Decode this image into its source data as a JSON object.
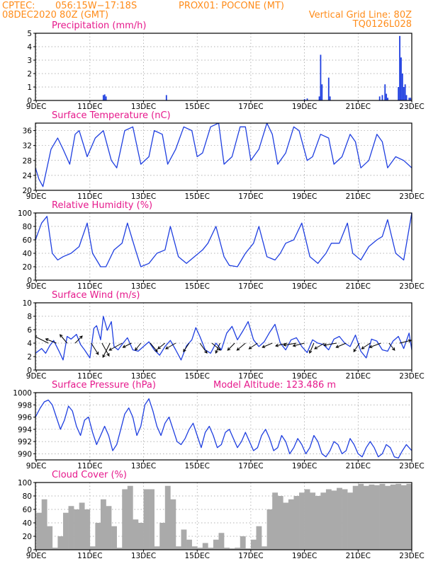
{
  "header": {
    "line1_left": "CPTEC:",
    "coords": "056:15W−17:18S",
    "station": "PROX01: POCONE (MT)",
    "run": "08DEC2020 80Z (GMT)",
    "grid_note": "Vertical Grid Line: 80Z",
    "model_code": "TQ0126L028"
  },
  "x_axis": {
    "ticks": [
      "9DEC",
      "11DEC",
      "13DEC",
      "15DEC",
      "17DEC",
      "19DEC",
      "21DEC",
      "23DEC"
    ]
  },
  "colors": {
    "title": "#e6198c",
    "header": "#ff8c1a",
    "line": "#1f3fe0",
    "cloud": "#aaaaaa",
    "arrow": "#000000"
  },
  "chart_data": [
    {
      "id": "precip",
      "type": "bar",
      "title": "Precipitation (mm/h)",
      "ylim": [
        0,
        5
      ],
      "yticks": [
        0,
        1,
        2,
        3,
        4,
        5
      ],
      "grid": true,
      "bars": [
        [
          10.5,
          0.4
        ],
        [
          10.55,
          0.45
        ],
        [
          10.6,
          0.3
        ],
        [
          12.85,
          0.4
        ],
        [
          18.0,
          0.1
        ],
        [
          18.1,
          0.15
        ],
        [
          18.55,
          0.3
        ],
        [
          18.6,
          3.4
        ],
        [
          18.65,
          1.2
        ],
        [
          18.9,
          1.7
        ],
        [
          18.95,
          0.3
        ],
        [
          20.8,
          0.3
        ],
        [
          20.9,
          0.4
        ],
        [
          21.0,
          1.2
        ],
        [
          21.05,
          0.5
        ],
        [
          21.1,
          0.2
        ],
        [
          21.5,
          1.0
        ],
        [
          21.55,
          4.8
        ],
        [
          21.6,
          3.2
        ],
        [
          21.65,
          2.0
        ],
        [
          21.7,
          1.0
        ],
        [
          21.75,
          1.2
        ],
        [
          21.8,
          0.4
        ],
        [
          21.9,
          0.2
        ],
        [
          21.95,
          0.2
        ]
      ]
    },
    {
      "id": "temp",
      "type": "line",
      "title": "Surface Temperature (nC)",
      "ylim": [
        20,
        38
      ],
      "yticks": [
        20,
        24,
        28,
        32,
        36
      ],
      "grid": true,
      "x": [
        7.97,
        8.1,
        8.25,
        8.55,
        8.8,
        9.0,
        9.25,
        9.45,
        9.6,
        9.9,
        10.2,
        10.5,
        10.8,
        11.0,
        11.3,
        11.6,
        11.9,
        12.2,
        12.4,
        12.7,
        12.9,
        13.2,
        13.5,
        13.8,
        14.0,
        14.2,
        14.5,
        14.8,
        15.0,
        15.3,
        15.6,
        15.8,
        16.0,
        16.3,
        16.6,
        16.8,
        17.0,
        17.3,
        17.6,
        17.8,
        18.1,
        18.3,
        18.6,
        18.9,
        19.1,
        19.4,
        19.7,
        19.9,
        20.1,
        20.4,
        20.7,
        20.9,
        21.1,
        21.4,
        21.7,
        22.0
      ],
      "y": [
        26,
        23,
        21,
        31,
        34,
        31,
        27,
        35,
        36,
        29,
        34,
        36,
        28,
        26,
        36,
        37,
        27,
        29,
        36,
        35,
        27,
        31,
        37,
        36,
        29,
        30,
        37,
        38,
        27,
        29,
        37,
        37,
        28,
        31,
        38,
        35,
        27,
        30,
        37,
        36,
        28,
        29,
        35,
        34,
        27,
        29,
        35,
        33,
        26,
        28,
        35,
        33,
        26,
        29,
        28,
        26
      ]
    },
    {
      "id": "rh",
      "type": "line",
      "title": "Relative Humidity (%)",
      "ylim": [
        0,
        100
      ],
      "yticks": [
        0,
        20,
        40,
        60,
        80,
        100
      ],
      "grid": true,
      "x": [
        7.97,
        8.2,
        8.4,
        8.6,
        8.8,
        9.0,
        9.3,
        9.6,
        9.9,
        10.1,
        10.4,
        10.6,
        10.9,
        11.2,
        11.4,
        11.7,
        11.9,
        12.2,
        12.5,
        12.8,
        13.0,
        13.3,
        13.6,
        13.9,
        14.2,
        14.4,
        14.7,
        15.0,
        15.2,
        15.5,
        15.8,
        16.1,
        16.3,
        16.6,
        16.9,
        17.1,
        17.3,
        17.6,
        17.9,
        18.2,
        18.5,
        18.8,
        19.0,
        19.3,
        19.6,
        19.8,
        20.1,
        20.4,
        20.7,
        20.9,
        21.1,
        21.4,
        21.7,
        22.0
      ],
      "y": [
        60,
        85,
        95,
        40,
        30,
        35,
        40,
        50,
        85,
        40,
        20,
        20,
        45,
        55,
        85,
        45,
        20,
        25,
        40,
        45,
        80,
        35,
        25,
        35,
        45,
        55,
        80,
        35,
        22,
        20,
        40,
        55,
        80,
        35,
        30,
        40,
        55,
        60,
        85,
        35,
        25,
        40,
        55,
        55,
        85,
        40,
        30,
        50,
        60,
        65,
        90,
        40,
        30,
        100
      ]
    },
    {
      "id": "wind",
      "type": "line",
      "title": "Surface Wind (m/s)",
      "ylim": [
        0,
        10
      ],
      "yticks": [
        0,
        2,
        4,
        6,
        8,
        10
      ],
      "grid": true,
      "x": [
        7.97,
        8.2,
        8.35,
        8.5,
        8.65,
        8.85,
        9.0,
        9.15,
        9.3,
        9.5,
        9.65,
        9.8,
        10.0,
        10.15,
        10.25,
        10.4,
        10.5,
        10.65,
        10.8,
        10.9,
        11.05,
        11.2,
        11.4,
        11.6,
        11.8,
        12.0,
        12.2,
        12.4,
        12.6,
        12.8,
        13.0,
        13.2,
        13.4,
        13.6,
        13.8,
        13.95,
        14.1,
        14.3,
        14.5,
        14.7,
        14.9,
        15.1,
        15.3,
        15.5,
        15.7,
        15.9,
        16.1,
        16.3,
        16.5,
        16.7,
        16.9,
        17.1,
        17.3,
        17.5,
        17.7,
        17.9,
        18.1,
        18.3,
        18.5,
        18.7,
        18.9,
        19.1,
        19.3,
        19.5,
        19.7,
        19.9,
        20.1,
        20.3,
        20.5,
        20.7,
        20.9,
        21.1,
        21.3,
        21.5,
        21.7,
        21.9,
        22.0
      ],
      "y": [
        2.5,
        3.2,
        2.5,
        3.6,
        4.4,
        2.8,
        1.5,
        5.0,
        4.6,
        5.3,
        3.8,
        3.0,
        1.8,
        6.2,
        6.6,
        4.5,
        8.0,
        5.9,
        7.2,
        3.5,
        3.0,
        3.8,
        4.8,
        3.0,
        2.8,
        3.5,
        4.2,
        3.0,
        2.2,
        3.5,
        4.4,
        3.0,
        1.5,
        3.6,
        4.5,
        6.3,
        5.0,
        3.0,
        2.5,
        4.0,
        3.0,
        5.5,
        6.5,
        4.5,
        5.8,
        7.2,
        4.5,
        3.5,
        4.2,
        5.6,
        6.8,
        4.0,
        3.0,
        4.5,
        4.8,
        3.5,
        2.6,
        4.5,
        4.0,
        3.8,
        3.0,
        4.6,
        5.0,
        4.0,
        3.5,
        5.2,
        2.8,
        1.8,
        4.6,
        4.3,
        3.0,
        2.8,
        4.3,
        5.0,
        3.2,
        5.5,
        3.0
      ],
      "arrows": [
        [
          8.45,
          -20,
          10
        ],
        [
          8.75,
          -15,
          6
        ],
        [
          9.15,
          -10,
          12
        ],
        [
          9.45,
          10,
          10
        ],
        [
          10.05,
          10,
          -16
        ],
        [
          10.45,
          10,
          -18
        ],
        [
          10.75,
          -10,
          -20
        ],
        [
          11.2,
          -18,
          -10
        ],
        [
          11.55,
          -12,
          -6
        ],
        [
          11.9,
          -8,
          -10
        ],
        [
          12.25,
          10,
          -12
        ],
        [
          12.8,
          -10,
          -8
        ],
        [
          13.2,
          -14,
          -8
        ],
        [
          13.7,
          -8,
          -12
        ],
        [
          14.1,
          10,
          -14
        ],
        [
          14.55,
          12,
          -10
        ],
        [
          14.85,
          -6,
          -14
        ],
        [
          15.4,
          -10,
          -10
        ],
        [
          15.8,
          -12,
          -10
        ],
        [
          16.25,
          -12,
          -8
        ],
        [
          16.8,
          -14,
          -6
        ],
        [
          17.35,
          -16,
          -4
        ],
        [
          17.7,
          -18,
          -3
        ],
        [
          18.0,
          -16,
          -4
        ],
        [
          18.35,
          -6,
          -14
        ],
        [
          18.75,
          -14,
          -8
        ],
        [
          19.2,
          -18,
          -3
        ],
        [
          19.55,
          -14,
          -6
        ],
        [
          20.05,
          -8,
          -12
        ],
        [
          20.45,
          -12,
          -8
        ],
        [
          20.85,
          -16,
          -6
        ],
        [
          21.15,
          8,
          -10
        ],
        [
          21.55,
          16,
          4
        ]
      ]
    },
    {
      "id": "pressure",
      "type": "line",
      "title": "Surface Pressure (hPa)",
      "annotation": "Model Altitude: 123.486 m",
      "ylim": [
        989,
        1000
      ],
      "yticks": [
        990,
        992,
        994,
        996,
        998,
        1000
      ],
      "grid": true,
      "x": [
        7.97,
        8.15,
        8.3,
        8.45,
        8.6,
        8.75,
        8.9,
        9.05,
        9.2,
        9.35,
        9.5,
        9.65,
        9.8,
        9.95,
        10.1,
        10.25,
        10.4,
        10.55,
        10.7,
        10.85,
        11.0,
        11.15,
        11.3,
        11.45,
        11.6,
        11.75,
        11.9,
        12.05,
        12.2,
        12.35,
        12.5,
        12.65,
        12.8,
        12.95,
        13.1,
        13.25,
        13.4,
        13.55,
        13.7,
        13.85,
        14.0,
        14.15,
        14.3,
        14.45,
        14.6,
        14.75,
        14.9,
        15.05,
        15.2,
        15.35,
        15.5,
        15.65,
        15.8,
        15.95,
        16.1,
        16.25,
        16.4,
        16.55,
        16.7,
        16.85,
        17.0,
        17.15,
        17.3,
        17.45,
        17.6,
        17.75,
        17.9,
        18.05,
        18.2,
        18.35,
        18.5,
        18.65,
        18.8,
        18.95,
        19.1,
        19.25,
        19.4,
        19.55,
        19.7,
        19.85,
        20.0,
        20.15,
        20.3,
        20.45,
        20.6,
        20.75,
        20.9,
        21.05,
        21.2,
        21.35,
        21.5,
        21.65,
        21.8,
        22.0
      ],
      "y": [
        996,
        997.5,
        998.5,
        998.8,
        998,
        996,
        994,
        995.5,
        997.8,
        997,
        994.5,
        993,
        995.5,
        996,
        993.5,
        991.5,
        993,
        994.5,
        993,
        990.5,
        991.5,
        994,
        996.5,
        997.5,
        996,
        993,
        994.5,
        998,
        999,
        997,
        994.5,
        993,
        995,
        996,
        994,
        992,
        991.5,
        992.5,
        994,
        995,
        993,
        991,
        993.5,
        994.5,
        993,
        991,
        991.5,
        993.5,
        994,
        992.5,
        991,
        992,
        993.5,
        992,
        990.5,
        991,
        993,
        994,
        992.5,
        990.5,
        991,
        993,
        992,
        990,
        991,
        992.5,
        991.5,
        990,
        991,
        993,
        992,
        990,
        989.5,
        990.5,
        992,
        991.5,
        990,
        990.5,
        992.5,
        991.5,
        990,
        989.5,
        991,
        992,
        991,
        989.5,
        990,
        991.5,
        991,
        989.5,
        989.3,
        990.5,
        991.5,
        990.5
      ]
    },
    {
      "id": "cloud",
      "type": "bar",
      "title": "Cloud Cover (%)",
      "ylim": [
        0,
        100
      ],
      "yticks": [
        0,
        20,
        40,
        60,
        80,
        100
      ],
      "grid": true,
      "x": [
        8.0,
        8.2,
        8.4,
        8.6,
        8.8,
        9.0,
        9.2,
        9.4,
        9.6,
        9.8,
        10.0,
        10.2,
        10.4,
        10.6,
        10.8,
        11.0,
        11.2,
        11.4,
        11.6,
        11.8,
        12.0,
        12.2,
        12.4,
        12.6,
        12.8,
        13.0,
        13.2,
        13.4,
        13.6,
        13.8,
        14.0,
        14.2,
        14.4,
        14.6,
        14.8,
        15.0,
        15.2,
        15.4,
        15.6,
        15.8,
        16.0,
        16.2,
        16.4,
        16.6,
        16.8,
        17.0,
        17.2,
        17.4,
        17.6,
        17.8,
        18.0,
        18.2,
        18.4,
        18.6,
        18.8,
        19.0,
        19.2,
        19.4,
        19.6,
        19.8,
        20.0,
        20.2,
        20.4,
        20.6,
        20.8,
        21.0,
        21.2,
        21.4,
        21.6,
        21.8
      ],
      "y": [
        55,
        75,
        35,
        3,
        20,
        55,
        65,
        60,
        70,
        60,
        5,
        40,
        75,
        65,
        35,
        3,
        90,
        95,
        45,
        40,
        90,
        90,
        5,
        40,
        95,
        75,
        5,
        30,
        15,
        5,
        3,
        10,
        3,
        15,
        25,
        3,
        2,
        3,
        20,
        2,
        15,
        35,
        5,
        60,
        85,
        80,
        70,
        75,
        80,
        85,
        90,
        85,
        80,
        85,
        90,
        88,
        92,
        90,
        85,
        95,
        98,
        95,
        97,
        96,
        98,
        95,
        97,
        98,
        96,
        98
      ]
    }
  ]
}
